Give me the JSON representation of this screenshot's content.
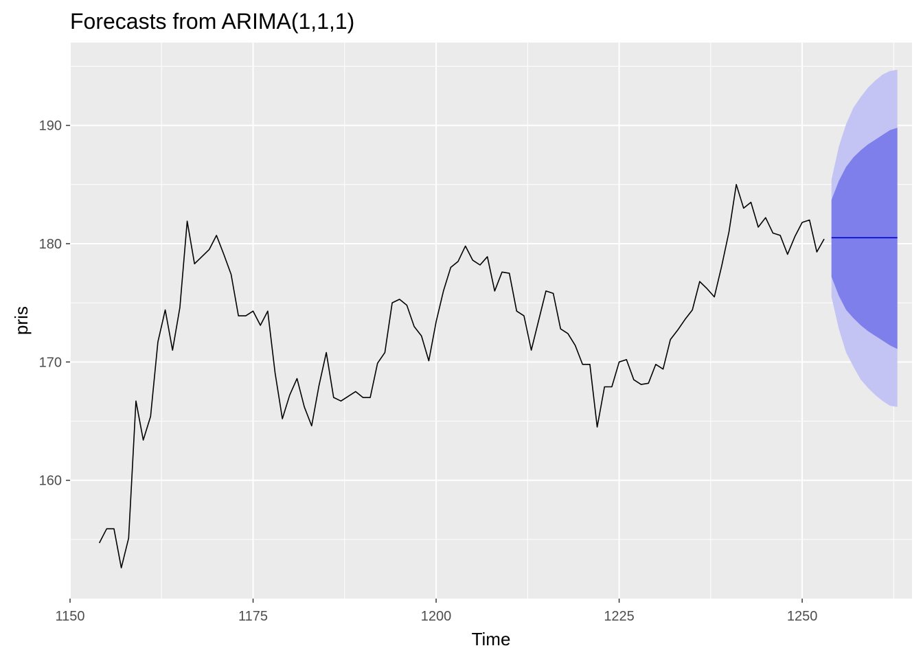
{
  "chart_data": {
    "type": "line",
    "title": "Forecasts from ARIMA(1,1,1)",
    "xlabel": "Time",
    "ylabel": "pris",
    "xlim": [
      1150,
      1265
    ],
    "ylim": [
      150,
      197
    ],
    "x_ticks": [
      1150,
      1175,
      1200,
      1225,
      1250
    ],
    "y_ticks": [
      160,
      170,
      180,
      190
    ],
    "grid": true,
    "colors": {
      "panel_background": "#ebebeb",
      "grid_major": "#ffffff",
      "series_line": "#000000",
      "forecast_line": "#0000cc",
      "interval_80": "#7f7fec",
      "interval_95": "#c4c4f4"
    },
    "series": [
      {
        "x": [
          1154,
          1155,
          1156,
          1157,
          1158,
          1159,
          1160,
          1161,
          1162,
          1163,
          1164,
          1165,
          1166,
          1167,
          1168,
          1169,
          1170,
          1171,
          1172,
          1173,
          1174,
          1175,
          1176,
          1177,
          1178,
          1179,
          1180,
          1181,
          1182,
          1183,
          1184,
          1185,
          1186,
          1187,
          1188,
          1189,
          1190,
          1191,
          1192,
          1193,
          1194,
          1195,
          1196,
          1197,
          1198,
          1199,
          1200,
          1201,
          1202,
          1203,
          1204,
          1205,
          1206,
          1207,
          1208,
          1209,
          1210,
          1211,
          1212,
          1213,
          1214,
          1215,
          1216,
          1217,
          1218,
          1219,
          1220,
          1221,
          1222,
          1223,
          1224,
          1225,
          1226,
          1227,
          1228,
          1229,
          1230,
          1231,
          1232,
          1233,
          1234,
          1235,
          1236,
          1237,
          1238,
          1239,
          1240,
          1241,
          1242,
          1243,
          1244,
          1245,
          1246,
          1247,
          1248,
          1249,
          1250,
          1251,
          1252,
          1253
        ],
        "y": [
          154.7,
          155.9,
          155.9,
          152.6,
          155.1,
          166.7,
          163.4,
          165.4,
          171.7,
          174.4,
          171.0,
          174.6,
          181.9,
          178.3,
          178.9,
          179.5,
          180.7,
          179.1,
          177.4,
          173.9,
          173.9,
          174.3,
          173.1,
          174.3,
          169.1,
          165.2,
          167.2,
          168.6,
          166.2,
          164.6,
          168.0,
          170.8,
          167.0,
          166.7,
          167.1,
          167.5,
          167.0,
          167.0,
          169.9,
          170.8,
          175.0,
          175.3,
          174.8,
          173.0,
          172.2,
          170.1,
          173.4,
          176.0,
          178.0,
          178.5,
          179.8,
          178.6,
          178.2,
          178.9,
          176.0,
          177.6,
          177.5,
          174.3,
          173.9,
          171.0,
          173.5,
          176.0,
          175.8,
          172.8,
          172.4,
          171.4,
          169.8,
          169.8,
          164.5,
          167.9,
          167.9,
          170.0,
          170.2,
          168.5,
          168.1,
          168.2,
          169.8,
          169.4,
          171.9,
          172.7,
          173.6,
          174.4,
          176.8,
          176.2,
          175.5,
          178.1,
          181.0,
          185.0,
          183.0,
          183.5,
          181.4,
          182.2,
          180.9,
          180.7,
          179.1,
          180.6,
          181.8,
          182.0,
          179.3,
          180.4
        ]
      }
    ],
    "forecast": {
      "x": [
        1254,
        1255,
        1256,
        1257,
        1258,
        1259,
        1260,
        1261,
        1262,
        1263
      ],
      "mean": [
        180.5,
        180.5,
        180.5,
        180.5,
        180.5,
        180.5,
        180.5,
        180.5,
        180.5,
        180.5
      ],
      "lo80": [
        177.2,
        175.6,
        174.4,
        173.7,
        173.1,
        172.6,
        172.2,
        171.8,
        171.4,
        171.1
      ],
      "hi80": [
        183.7,
        185.3,
        186.5,
        187.3,
        187.9,
        188.4,
        188.8,
        189.2,
        189.6,
        189.8
      ],
      "lo95": [
        175.5,
        172.8,
        170.8,
        169.6,
        168.5,
        167.8,
        167.2,
        166.7,
        166.3,
        166.2
      ],
      "hi95": [
        185.4,
        188.2,
        190.1,
        191.5,
        192.4,
        193.2,
        193.8,
        194.3,
        194.6,
        194.7
      ]
    }
  }
}
